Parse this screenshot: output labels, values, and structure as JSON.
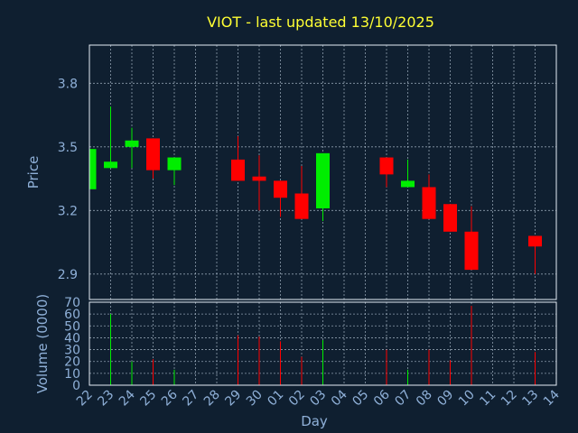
{
  "chart_data": {
    "type": "candlestick",
    "title": "VIOT - last updated 13/10/2025",
    "xlabel": "Day",
    "ylabel_price": "Price",
    "ylabel_volume": "Volume (0000)",
    "x_ticks": [
      "22",
      "23",
      "24",
      "25",
      "26",
      "27",
      "28",
      "29",
      "30",
      "01",
      "02",
      "03",
      "04",
      "05",
      "06",
      "07",
      "08",
      "09",
      "10",
      "11",
      "12",
      "13",
      "14"
    ],
    "price_ticks": [
      "2.9",
      "3.2",
      "3.5",
      "3.8"
    ],
    "price_ylim": [
      2.78,
      3.98
    ],
    "volume_ticks": [
      "0",
      "10",
      "20",
      "30",
      "40",
      "50",
      "60",
      "70"
    ],
    "volume_ylim": [
      0,
      70
    ],
    "grid": true,
    "colors": {
      "up": "#00ee00",
      "down": "#ff0000",
      "background": "#0f1f30",
      "title": "#ffff33",
      "text": "#8fb0d8"
    },
    "candles": [
      {
        "day": "22",
        "open": 3.3,
        "high": 3.5,
        "low": 3.3,
        "close": 3.49,
        "volume": 0
      },
      {
        "day": "23",
        "open": 3.4,
        "high": 3.69,
        "low": 3.4,
        "close": 3.43,
        "volume": 60
      },
      {
        "day": "24",
        "open": 3.5,
        "high": 3.59,
        "low": 3.4,
        "close": 3.53,
        "volume": 20
      },
      {
        "day": "25",
        "open": 3.54,
        "high": 3.54,
        "low": 3.35,
        "close": 3.39,
        "volume": 22
      },
      {
        "day": "26",
        "open": 3.39,
        "high": 3.45,
        "low": 3.32,
        "close": 3.45,
        "volume": 13
      },
      {
        "day": "29",
        "open": 3.44,
        "high": 3.55,
        "low": 3.34,
        "close": 3.34,
        "volume": 42
      },
      {
        "day": "30",
        "open": 3.36,
        "high": 3.46,
        "low": 3.2,
        "close": 3.34,
        "volume": 41
      },
      {
        "day": "01",
        "open": 3.34,
        "high": 3.34,
        "low": 3.17,
        "close": 3.26,
        "volume": 37
      },
      {
        "day": "02",
        "open": 3.28,
        "high": 3.41,
        "low": 3.16,
        "close": 3.16,
        "volume": 24
      },
      {
        "day": "03",
        "open": 3.21,
        "high": 3.47,
        "low": 3.15,
        "close": 3.47,
        "volume": 38
      },
      {
        "day": "06",
        "open": 3.45,
        "high": 3.45,
        "low": 3.31,
        "close": 3.37,
        "volume": 30
      },
      {
        "day": "07",
        "open": 3.31,
        "high": 3.44,
        "low": 3.31,
        "close": 3.34,
        "volume": 13
      },
      {
        "day": "08",
        "open": 3.31,
        "high": 3.37,
        "low": 3.16,
        "close": 3.16,
        "volume": 30
      },
      {
        "day": "09",
        "open": 3.23,
        "high": 3.23,
        "low": 3.1,
        "close": 3.1,
        "volume": 21
      },
      {
        "day": "10",
        "open": 3.1,
        "high": 3.22,
        "low": 2.92,
        "close": 2.92,
        "volume": 67
      },
      {
        "day": "13",
        "open": 3.08,
        "high": 3.08,
        "low": 2.9,
        "close": 3.03,
        "volume": 28
      }
    ]
  }
}
